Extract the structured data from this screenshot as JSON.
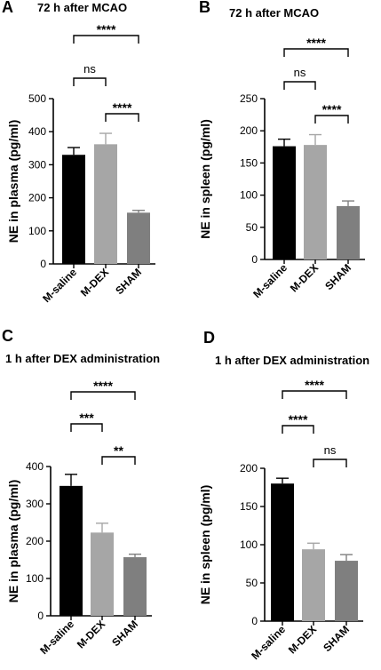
{
  "chart_data": [
    {
      "type": "bar",
      "panel": "A",
      "title": "72 h after MCAO",
      "ylabel": "NE  in plasma (pg/ml)",
      "ylim": [
        0,
        500
      ],
      "yticks": [
        "0",
        "100",
        "200",
        "300",
        "400",
        "500"
      ],
      "categories": [
        "M-saline",
        "M-DEX",
        "SHAM"
      ],
      "values": [
        330,
        362,
        155
      ],
      "errors": [
        22,
        33,
        7
      ],
      "colors": [
        "#000000",
        "#a6a6a6",
        "#7f7f7f"
      ],
      "comparisons": [
        {
          "from": 0,
          "to": 2,
          "label": "****"
        },
        {
          "from": 0,
          "to": 1,
          "label": "ns"
        },
        {
          "from": 1,
          "to": 2,
          "label": "****"
        }
      ]
    },
    {
      "type": "bar",
      "panel": "B",
      "title": "72 h after MCAO",
      "ylabel": "NE in spleen (pg/ml)",
      "ylim": [
        0,
        250
      ],
      "yticks": [
        "0",
        "50",
        "100",
        "150",
        "200",
        "250"
      ],
      "categories": [
        "M-saline",
        "M-DEX",
        "SHAM"
      ],
      "values": [
        176,
        178,
        83
      ],
      "errors": [
        11,
        16,
        8
      ],
      "colors": [
        "#000000",
        "#a6a6a6",
        "#7f7f7f"
      ],
      "comparisons": [
        {
          "from": 0,
          "to": 2,
          "label": "****"
        },
        {
          "from": 0,
          "to": 1,
          "label": "ns"
        },
        {
          "from": 1,
          "to": 2,
          "label": "****"
        }
      ]
    },
    {
      "type": "bar",
      "panel": "C",
      "title": "1 h after DEX administration",
      "ylabel": "NE in plasma (pg/ml)",
      "ylim": [
        0,
        400
      ],
      "yticks": [
        "0",
        "100",
        "200",
        "300",
        "400"
      ],
      "categories": [
        "M-saline",
        "M-DEX",
        "SHAM"
      ],
      "values": [
        348,
        223,
        157
      ],
      "errors": [
        31,
        25,
        8
      ],
      "colors": [
        "#000000",
        "#a6a6a6",
        "#7f7f7f"
      ],
      "comparisons": [
        {
          "from": 0,
          "to": 2,
          "label": "****"
        },
        {
          "from": 0,
          "to": 1,
          "label": "***"
        },
        {
          "from": 1,
          "to": 2,
          "label": "**"
        }
      ]
    },
    {
      "type": "bar",
      "panel": "D",
      "title": "1 h after DEX administration",
      "ylabel": "NE in spleen (pg/ml)",
      "ylim": [
        0,
        200
      ],
      "yticks": [
        "0",
        "50",
        "100",
        "150",
        "200"
      ],
      "categories": [
        "M-saline",
        "M-DEX",
        "SHAM"
      ],
      "values": [
        180,
        94,
        79
      ],
      "errors": [
        7,
        8,
        8
      ],
      "colors": [
        "#000000",
        "#a6a6a6",
        "#7f7f7f"
      ],
      "comparisons": [
        {
          "from": 0,
          "to": 2,
          "label": "****"
        },
        {
          "from": 0,
          "to": 1,
          "label": "****"
        },
        {
          "from": 1,
          "to": 2,
          "label": "ns"
        }
      ]
    }
  ]
}
